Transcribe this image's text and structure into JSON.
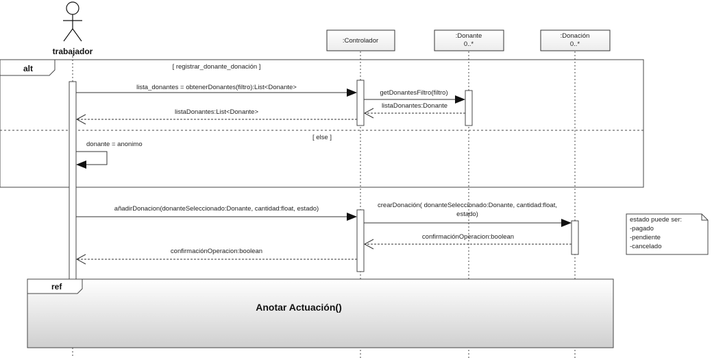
{
  "actor": {
    "name": "trabajador"
  },
  "lifelines": {
    "controlador": {
      "label": ":Controlador"
    },
    "donante": {
      "label": ":Donante",
      "multiplicity": "0..*"
    },
    "donacion": {
      "label": ":Donación",
      "multiplicity": "0..*"
    }
  },
  "alt_fragment": {
    "operator": "alt",
    "guard_1": "[ registrar_donante_donación ]",
    "guard_2": "[ else ]"
  },
  "messages": {
    "m1": "lista_donantes = obtenerDonantes(filtro):List<Donante>",
    "m2": "getDonantesFiltro(filtro)",
    "m3": "listaDonantes:Donante",
    "m4": "listaDonantes:List<Donante>",
    "m5": "donante = anonimo",
    "m6": "añadirDonacion(donanteSeleccionado:Donante, cantidad:float, estado)",
    "m7_line1": "crearDonación( donanteSeleccionado:Donante, cantidad:float,",
    "m7_line2": "estado)",
    "m8": "confirmaciónOperacion:boolean",
    "m9": "confirmaciónOperacion:boolean"
  },
  "note": {
    "line1": "estado puede ser:",
    "line2": "-pagado",
    "line3": "-pendiente",
    "line4": "-cancelado"
  },
  "ref_fragment": {
    "operator": "ref",
    "label": "Anotar Actuación()"
  }
}
